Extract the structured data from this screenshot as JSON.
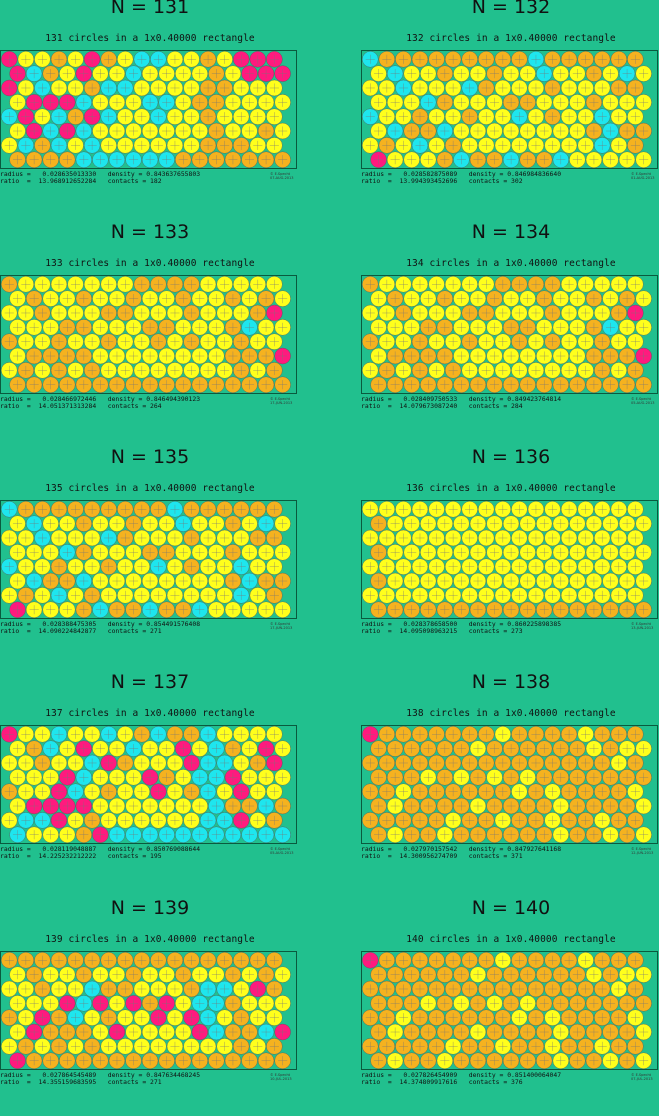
{
  "colors": {
    "background": "#21c08e",
    "frame": "#0a5a3e",
    "orange": "#f5b21f",
    "yellow": "#ffff1c",
    "cyan": "#1ee6ee",
    "magenta": "#ff1a7e"
  },
  "panels": [
    {
      "n_label": "N = 131",
      "subtitle": "131 circles in a 1x0.40000 rectangle",
      "stats_line1": "radius =   0.028635013330   density = 0.843637655803",
      "stats_line2": "ratio  =  13.968912652284   contacts = 182",
      "credit_line1": "© E.Specht",
      "credit_line2": "07-AUG-2013",
      "rows": 8,
      "cols": 17,
      "palette": "mixed_a"
    },
    {
      "n_label": "N = 132",
      "subtitle": "132 circles in a 1x0.40000 rectangle",
      "stats_line1": "radius =   0.028582875089   density = 0.846984836640",
      "stats_line2": "ratio  =  13.994393452696   contacts = 302",
      "credit_line1": "© E.Specht",
      "credit_line2": "01-AUG-2013",
      "rows": 8,
      "cols": 17,
      "palette": "yellow_orange_cyan"
    },
    {
      "n_label": "N = 133",
      "subtitle": "133 circles in a 1x0.40000 rectangle",
      "stats_line1": "radius =   0.028466972446   density = 0.846494390123",
      "stats_line2": "ratio  =  14.051371313284   contacts = 264",
      "credit_line1": "© E.Specht",
      "credit_line2": "17-JUN-2013",
      "rows": 8,
      "cols": 17,
      "palette": "yellow_orange_few"
    },
    {
      "n_label": "N = 134",
      "subtitle": "134 circles in a 1x0.40000 rectangle",
      "stats_line1": "radius =   0.028409750533   density = 0.849423764814",
      "stats_line2": "ratio  =  14.079673087240   contacts = 284",
      "credit_line1": "© E.Specht",
      "credit_line2": "05-AUG-2013",
      "rows": 8,
      "cols": 17,
      "palette": "yellow_orange_few"
    },
    {
      "n_label": "N = 135",
      "subtitle": "135 circles in a 1x0.40000 rectangle",
      "stats_line1": "radius =   0.028388475305   density = 0.854491576408",
      "stats_line2": "ratio  =  14.090224842877   contacts = 271",
      "credit_line1": "© E.Specht",
      "credit_line2": "17-JUN-2013",
      "rows": 8,
      "cols": 17,
      "palette": "yellow_orange_cyan"
    },
    {
      "n_label": "N = 136",
      "subtitle": "136 circles in a 1x0.40000 rectangle",
      "stats_line1": "radius =   0.028378658500   density = 0.860225898385",
      "stats_line2": "ratio  =  14.095098963215   contacts = 273",
      "credit_line1": "© E.Specht",
      "credit_line2": "13-JUN-2013",
      "rows": 8,
      "cols": 17,
      "palette": "yellow_only"
    },
    {
      "n_label": "N = 137",
      "subtitle": "137 circles in a 1x0.40000 rectangle",
      "stats_line1": "radius =   0.028119048887   density = 0.850769088644",
      "stats_line2": "ratio  =  14.225232212222   contacts = 195",
      "credit_line1": "© E.Specht",
      "credit_line2": "05-AUG-2013",
      "rows": 8,
      "cols": 17,
      "palette": "mixed_b"
    },
    {
      "n_label": "N = 138",
      "subtitle": "138 circles in a 1x0.40000 rectangle",
      "stats_line1": "radius =   0.027970157542   density = 0.847927641168",
      "stats_line2": "ratio  =  14.300956274709   contacts = 371",
      "credit_line1": "© E.Specht",
      "credit_line2": "12-JUN-2013",
      "rows": 8,
      "cols": 17,
      "palette": "orange_mostly"
    },
    {
      "n_label": "N = 139",
      "subtitle": "139 circles in a 1x0.40000 rectangle",
      "stats_line1": "radius =   0.027864545489   density = 0.847634468245",
      "stats_line2": "ratio  =  14.355159683595   contacts = 271",
      "credit_line1": "© E.Specht",
      "credit_line2": "10-JUL-2013",
      "rows": 8,
      "cols": 17,
      "palette": "mixed_c"
    },
    {
      "n_label": "N = 140",
      "subtitle": "140 circles in a 1x0.40000 rectangle",
      "stats_line1": "radius =   0.027826454909   density = 0.851400064047",
      "stats_line2": "ratio  =  14.374809917616   contacts = 376",
      "credit_line1": "© E.Specht",
      "credit_line2": "07-JUL-2013",
      "rows": 8,
      "cols": 17,
      "palette": "orange_mostly"
    }
  ]
}
